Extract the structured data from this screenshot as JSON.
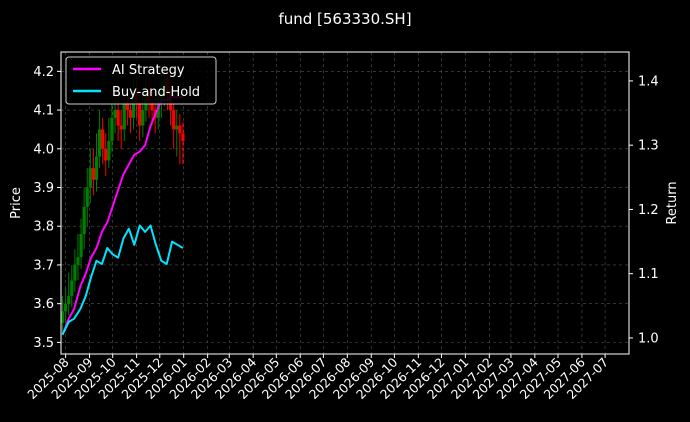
{
  "chart_data": {
    "type": "line",
    "title": "fund [563330.SH]",
    "ylabel": "Price",
    "y2label": "Return",
    "ylim": [
      3.47,
      4.25
    ],
    "y2lim": [
      0.975,
      1.445
    ],
    "yticks": [
      "3.5",
      "3.6",
      "3.7",
      "3.8",
      "3.9",
      "4.0",
      "4.1",
      "4.2"
    ],
    "y2ticks": [
      "1.0",
      "1.1",
      "1.2",
      "1.3",
      "1.4"
    ],
    "x_range": [
      "2025-07-26",
      "2027-08-01"
    ],
    "xticks": [
      "2025-08",
      "2025-09",
      "2025-10",
      "2025-11",
      "2025-12",
      "2026-01",
      "2026-02",
      "2026-03",
      "2026-04",
      "2026-05",
      "2026-06",
      "2026-07",
      "2026-08",
      "2026-09",
      "2026-10",
      "2026-11",
      "2026-12",
      "2027-01",
      "2027-02",
      "2027-03",
      "2027-04",
      "2027-05",
      "2027-06",
      "2027-07"
    ],
    "grid": true,
    "legend_position": "top-left",
    "series": [
      {
        "name": "AI Strategy",
        "axis": "right",
        "color": "#ff00ff",
        "x": [
          "2025-07-28",
          "2025-08-05",
          "2025-08-12",
          "2025-08-20",
          "2025-08-27",
          "2025-09-03",
          "2025-09-10",
          "2025-09-17",
          "2025-09-24",
          "2025-10-01",
          "2025-10-08",
          "2025-10-15",
          "2025-10-22",
          "2025-10-29",
          "2025-11-05",
          "2025-11-12",
          "2025-11-19",
          "2025-11-26",
          "2025-12-03",
          "2025-12-10",
          "2025-12-17",
          "2025-12-24",
          "2025-12-31"
        ],
        "values": [
          1.005,
          1.03,
          1.045,
          1.08,
          1.1,
          1.125,
          1.14,
          1.165,
          1.18,
          1.205,
          1.23,
          1.255,
          1.27,
          1.285,
          1.29,
          1.3,
          1.33,
          1.35,
          1.37,
          1.37,
          1.375,
          1.375,
          1.375
        ]
      },
      {
        "name": "Buy-and-Hold",
        "axis": "right",
        "color": "#00e5ff",
        "x": [
          "2025-07-28",
          "2025-08-05",
          "2025-08-12",
          "2025-08-20",
          "2025-08-27",
          "2025-09-03",
          "2025-09-10",
          "2025-09-17",
          "2025-09-24",
          "2025-10-01",
          "2025-10-08",
          "2025-10-15",
          "2025-10-22",
          "2025-10-29",
          "2025-11-05",
          "2025-11-12",
          "2025-11-19",
          "2025-11-26",
          "2025-12-03",
          "2025-12-10",
          "2025-12-17",
          "2025-12-24",
          "2025-12-31"
        ],
        "values": [
          1.005,
          1.025,
          1.03,
          1.045,
          1.065,
          1.095,
          1.12,
          1.115,
          1.14,
          1.13,
          1.125,
          1.155,
          1.17,
          1.145,
          1.175,
          1.165,
          1.175,
          1.145,
          1.12,
          1.115,
          1.15,
          1.145,
          1.14
        ]
      }
    ],
    "candles": {
      "axis": "left",
      "up_color": "#008000",
      "down_color": "#ff0000",
      "x": [
        "2025-07-28",
        "2025-08-01",
        "2025-08-05",
        "2025-08-09",
        "2025-08-13",
        "2025-08-17",
        "2025-08-21",
        "2025-08-25",
        "2025-08-29",
        "2025-09-02",
        "2025-09-06",
        "2025-09-10",
        "2025-09-14",
        "2025-09-18",
        "2025-09-22",
        "2025-09-26",
        "2025-09-30",
        "2025-10-04",
        "2025-10-08",
        "2025-10-12",
        "2025-10-16",
        "2025-10-20",
        "2025-10-24",
        "2025-10-28",
        "2025-11-01",
        "2025-11-05",
        "2025-11-09",
        "2025-11-13",
        "2025-11-17",
        "2025-11-21",
        "2025-11-25",
        "2025-11-29",
        "2025-12-03",
        "2025-12-07",
        "2025-12-11",
        "2025-12-15",
        "2025-12-19",
        "2025-12-23",
        "2025-12-27",
        "2025-12-31"
      ],
      "open": [
        3.55,
        3.58,
        3.6,
        3.62,
        3.66,
        3.7,
        3.72,
        3.78,
        3.85,
        3.9,
        3.95,
        3.92,
        3.98,
        4.05,
        4.0,
        3.97,
        4.02,
        4.08,
        4.1,
        4.06,
        4.05,
        4.12,
        4.1,
        4.08,
        4.15,
        4.12,
        4.06,
        4.1,
        4.15,
        4.12,
        4.1,
        4.08,
        4.12,
        4.15,
        4.18,
        4.14,
        4.1,
        4.05,
        4.06,
        4.04
      ],
      "close": [
        3.58,
        3.6,
        3.62,
        3.66,
        3.7,
        3.72,
        3.78,
        3.85,
        3.9,
        3.95,
        3.92,
        3.98,
        4.05,
        4.0,
        3.97,
        4.02,
        4.08,
        4.1,
        4.06,
        4.05,
        4.12,
        4.1,
        4.08,
        4.15,
        4.12,
        4.06,
        4.1,
        4.15,
        4.12,
        4.1,
        4.08,
        4.12,
        4.15,
        4.18,
        4.14,
        4.1,
        4.05,
        4.06,
        4.04,
        4.02
      ],
      "high": [
        3.62,
        3.64,
        3.68,
        3.7,
        3.74,
        3.78,
        3.82,
        3.9,
        3.95,
        4.0,
        4.0,
        4.04,
        4.1,
        4.08,
        4.04,
        4.08,
        4.12,
        4.15,
        4.14,
        4.1,
        4.16,
        4.15,
        4.13,
        4.18,
        4.18,
        4.14,
        4.14,
        4.19,
        4.18,
        4.15,
        4.13,
        4.16,
        4.19,
        4.22,
        4.2,
        4.16,
        4.12,
        4.1,
        4.09,
        4.07
      ],
      "low": [
        3.52,
        3.55,
        3.57,
        3.59,
        3.63,
        3.66,
        3.69,
        3.74,
        3.8,
        3.86,
        3.88,
        3.89,
        3.95,
        3.96,
        3.93,
        3.95,
        3.99,
        4.04,
        4.02,
        4.0,
        4.02,
        4.06,
        4.04,
        4.05,
        4.08,
        4.02,
        4.03,
        4.07,
        4.08,
        4.06,
        4.04,
        4.05,
        4.08,
        4.11,
        4.1,
        4.06,
        4.0,
        3.98,
        3.96,
        3.96
      ]
    }
  }
}
